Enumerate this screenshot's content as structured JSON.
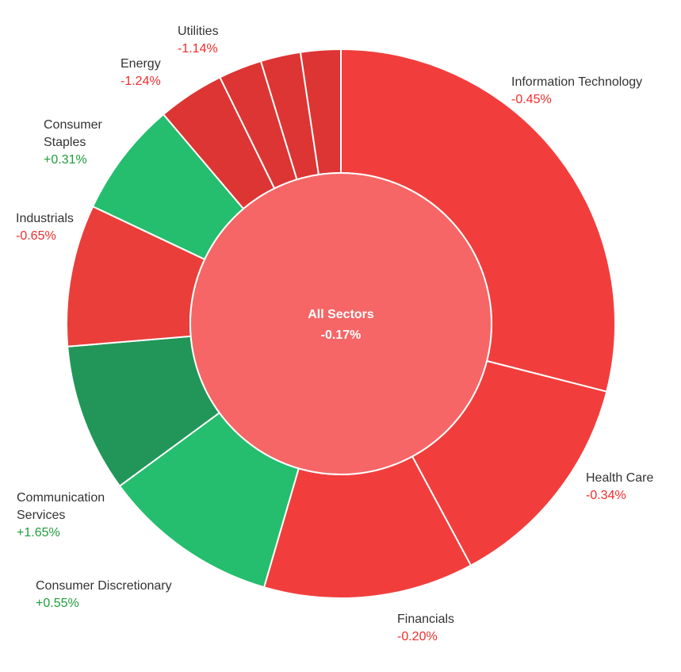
{
  "chart_data": {
    "type": "pie",
    "subtype": "donut-sunburst",
    "center": {
      "name": "All Sectors",
      "change": "-0.17%",
      "color": "#f66666"
    },
    "segments": [
      {
        "key": "info-tech",
        "name_lines": [
          "Information Technology"
        ],
        "change": "-0.45%",
        "color": "#f13e3c",
        "value": 29.5
      },
      {
        "key": "health-care",
        "name_lines": [
          "Health Care"
        ],
        "change": "-0.34%",
        "color": "#f13e3c",
        "value": 13.4
      },
      {
        "key": "financials",
        "name_lines": [
          "Financials"
        ],
        "change": "-0.20%",
        "color": "#f13e3c",
        "value": 12.6
      },
      {
        "key": "consumer-discretionary",
        "name_lines": [
          "Consumer Discretionary"
        ],
        "change": "+0.55%",
        "color": "#25bd6e",
        "value": 10.6
      },
      {
        "key": "communication-services",
        "name_lines": [
          "Communication",
          "Services"
        ],
        "change": "+1.65%",
        "color": "#229659",
        "value": 8.9
      },
      {
        "key": "industrials",
        "name_lines": [
          "Industrials"
        ],
        "change": "-0.65%",
        "color": "#ea3e3a",
        "value": 8.5
      },
      {
        "key": "consumer-staples",
        "name_lines": [
          "Consumer",
          "Staples"
        ],
        "change": "+0.31%",
        "color": "#25bd6e",
        "value": 6.9
      },
      {
        "key": "energy",
        "name_lines": [
          "Energy"
        ],
        "change": "-1.24%",
        "color": "#dd3533",
        "value": 4.0
      },
      {
        "key": "utilities",
        "name_lines": [
          "Utilities"
        ],
        "change": "-1.14%",
        "color": "#dd3533",
        "value": 2.6
      },
      {
        "key": "real-estate",
        "name_lines": [],
        "change": "",
        "color": "#dd3533",
        "value": 2.4
      },
      {
        "key": "materials",
        "name_lines": [],
        "change": "",
        "color": "#dd3533",
        "value": 2.4
      }
    ],
    "value_colors": {
      "negative": "#f02c2c",
      "positive": "#1f9d3a"
    },
    "legend": "none"
  }
}
